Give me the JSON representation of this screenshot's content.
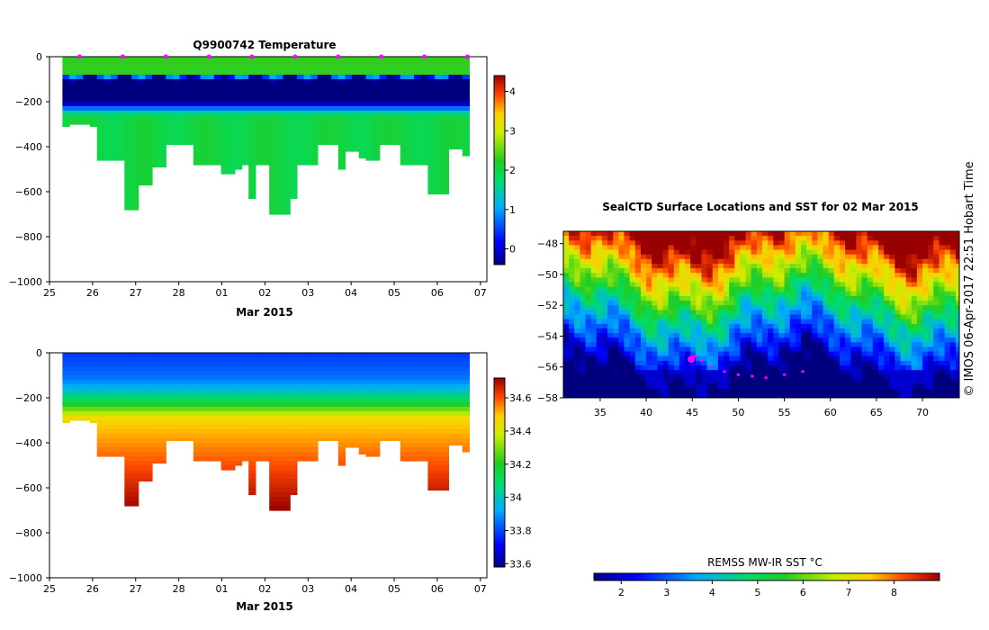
{
  "colors": {
    "jet": [
      "#00007f",
      "#0000ff",
      "#007fff",
      "#00ffff",
      "#00cc44",
      "#7fff00",
      "#ffff00",
      "#ff7f00",
      "#ff0000",
      "#7f0000"
    ],
    "marker": "#ff00ff"
  },
  "chart_data": [
    {
      "id": "temperature",
      "type": "heatmap",
      "title": "Q9900742  Temperature",
      "xlabel": "Mar 2015",
      "x_ticks": [
        "25",
        "26",
        "27",
        "28",
        "01",
        "02",
        "03",
        "04",
        "05",
        "06",
        "07"
      ],
      "y_ticks": [
        "0",
        "−200",
        "−400",
        "−600",
        "−800",
        "−1000"
      ],
      "ylim": [
        -1000,
        0
      ],
      "colorbar": {
        "min": -0.4,
        "max": 4.4,
        "ticks": [
          "0",
          "1",
          "2",
          "3",
          "4"
        ],
        "tick_values": [
          0,
          1,
          2,
          3,
          4
        ]
      },
      "profile_markers_days": [
        1,
        2,
        3,
        4,
        5,
        6,
        7,
        8,
        9,
        10
      ],
      "profiles": {
        "start_day": 0.3,
        "day_step": 0.16,
        "max_depths": [
          310,
          300,
          300,
          300,
          310,
          460,
          460,
          460,
          460,
          680,
          680,
          570,
          570,
          490,
          490,
          390,
          390,
          390,
          390,
          480,
          480,
          480,
          480,
          520,
          520,
          500,
          480,
          630,
          480,
          480,
          700,
          700,
          700,
          630,
          480,
          480,
          480,
          390,
          390,
          390,
          500,
          420,
          420,
          450,
          460,
          460,
          390,
          390,
          390,
          480,
          480,
          480,
          480,
          610,
          610,
          610,
          410,
          410,
          440
        ]
      },
      "series_description": "Temperature vs depth: ~2.3 near surface, cold core <0 between ~-100 and -200, ~2 below"
    },
    {
      "id": "salinity",
      "type": "heatmap",
      "title": "",
      "xlabel": "Mar 2015",
      "x_ticks": [
        "25",
        "26",
        "27",
        "28",
        "01",
        "02",
        "03",
        "04",
        "05",
        "06",
        "07"
      ],
      "y_ticks": [
        "0",
        "−200",
        "−400",
        "−600",
        "−800",
        "−1000"
      ],
      "ylim": [
        -1000,
        0
      ],
      "colorbar": {
        "min": 33.58,
        "max": 34.72,
        "ticks": [
          "33.6",
          "33.8",
          "34",
          "34.2",
          "34.4",
          "34.6"
        ],
        "tick_values": [
          33.6,
          33.8,
          34.0,
          34.2,
          34.4,
          34.6
        ]
      },
      "series_description": "Salinity vs depth: ~33.8 near surface increasing to ~34.7 at depth"
    },
    {
      "id": "sst_map",
      "type": "heatmap",
      "title": "SealCTD Surface Locations and SST for 02 Mar 2015",
      "x_ticks": [
        "35",
        "40",
        "45",
        "50",
        "55",
        "60",
        "65",
        "70"
      ],
      "x_values": [
        35,
        40,
        45,
        50,
        55,
        60,
        65,
        70
      ],
      "xlim": [
        31,
        74
      ],
      "y_ticks": [
        "−48",
        "−50",
        "−52",
        "−54",
        "−56",
        "−58"
      ],
      "y_values": [
        -48,
        -50,
        -52,
        -54,
        -56,
        -58
      ],
      "ylim": [
        -58,
        -47.2
      ],
      "track_lonlat": [
        [
          44.9,
          -55.5
        ],
        [
          45.3,
          -55.3
        ],
        [
          46.0,
          -55.6
        ],
        [
          47.0,
          -56.0
        ],
        [
          48.5,
          -56.3
        ],
        [
          50.0,
          -56.5
        ],
        [
          51.5,
          -56.6
        ],
        [
          53.0,
          -56.7
        ],
        [
          55.0,
          -56.5
        ],
        [
          57.0,
          -56.3
        ]
      ],
      "colorbar": {
        "label": "REMSS MW-IR SST °C",
        "min": 1.4,
        "max": 9.0,
        "ticks": [
          "2",
          "3",
          "4",
          "5",
          "6",
          "7",
          "8"
        ],
        "tick_values": [
          2,
          3,
          4,
          5,
          6,
          7,
          8
        ]
      }
    }
  ],
  "credit": "© IMOS 06-Apr-2017 22:51 Hobart Time"
}
